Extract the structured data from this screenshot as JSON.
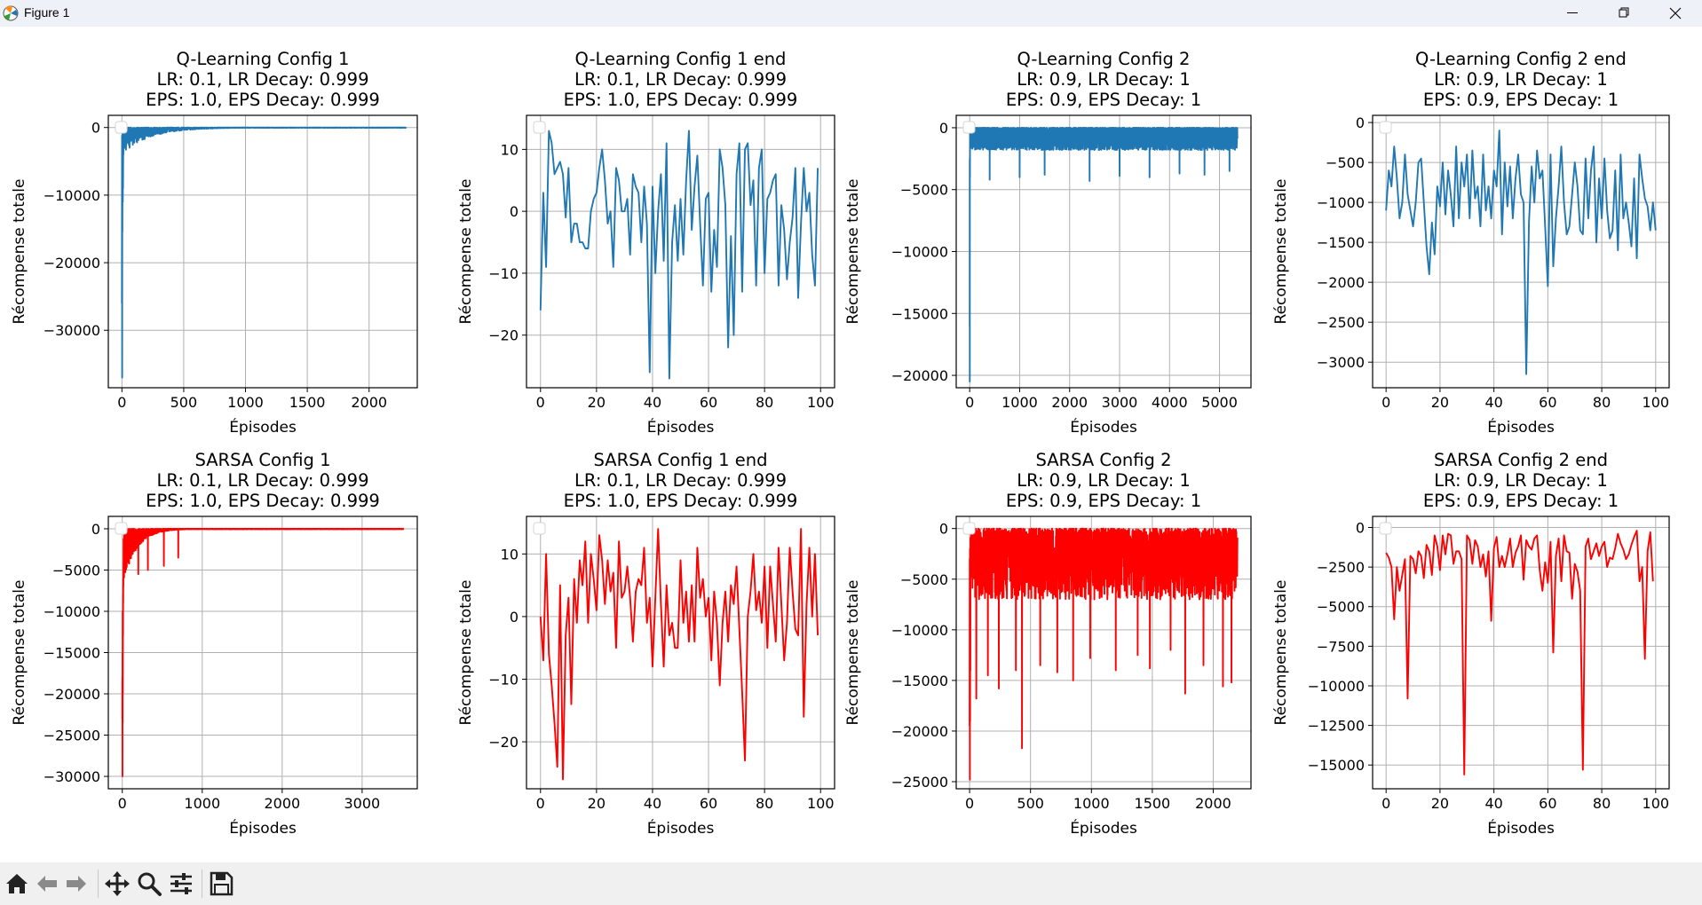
{
  "window": {
    "title": "Figure 1",
    "controls": {
      "minimize": "minimize-icon",
      "restore": "restore-icon",
      "close": "close-icon"
    }
  },
  "toolbar": {
    "buttons": [
      "home-icon",
      "back-arrow-icon",
      "forward-arrow-icon",
      "pan-icon",
      "zoom-icon",
      "configure-subplots-icon",
      "save-icon"
    ]
  },
  "colors": {
    "blue": "#1f77b4",
    "red": "#ff0000",
    "grid": "#b0b0b0"
  },
  "chart_data": [
    {
      "type": "line",
      "color": "#1f77b4",
      "title": [
        "Q-Learning Config 1",
        "LR: 0.1, LR Decay: 0.999",
        "EPS: 1.0, EPS Decay: 0.999"
      ],
      "xlabel": "Épisodes",
      "ylabel": "Récompense totale",
      "xlim": [
        -110,
        2390
      ],
      "ylim": [
        -38500,
        1800
      ],
      "xticks": [
        0,
        500,
        1000,
        1500,
        2000
      ],
      "yticks": [
        0,
        -10000,
        -20000,
        -30000
      ],
      "grid": true,
      "legend": "empty, upper left",
      "series": [
        {
          "n": 2300,
          "init": [
            -26000,
            -1200,
            -37000,
            -2000,
            -15500,
            -400,
            -3500,
            -11000,
            -6000,
            -9000,
            -5000,
            -2500,
            -4000,
            -1500,
            -3000
          ],
          "amp_start": 4000,
          "decay": 220,
          "floor": 50,
          "spikes": []
        }
      ]
    },
    {
      "type": "line",
      "color": "#1f77b4",
      "title": [
        "Q-Learning Config 1 end",
        "LR: 0.1, LR Decay: 0.999",
        "EPS: 1.0, EPS Decay: 0.999"
      ],
      "xlabel": "Épisodes",
      "ylabel": "Récompense totale",
      "xlim": [
        -5,
        105
      ],
      "ylim": [
        -28.5,
        15.5
      ],
      "xticks": [
        0,
        20,
        40,
        60,
        80,
        100
      ],
      "yticks": [
        10,
        0,
        -10,
        -20
      ],
      "grid": true,
      "legend": "empty, upper left",
      "x": [
        0,
        1,
        2,
        3,
        4,
        5,
        6,
        7,
        8,
        9,
        10,
        11,
        12,
        13,
        14,
        15,
        16,
        17,
        18,
        19,
        20,
        21,
        22,
        23,
        24,
        25,
        26,
        27,
        28,
        29,
        30,
        31,
        32,
        33,
        34,
        35,
        36,
        37,
        38,
        39,
        40,
        41,
        42,
        43,
        44,
        45,
        46,
        47,
        48,
        49,
        50,
        51,
        52,
        53,
        54,
        55,
        56,
        57,
        58,
        59,
        60,
        61,
        62,
        63,
        64,
        65,
        66,
        67,
        68,
        69,
        70,
        71,
        72,
        73,
        74,
        75,
        76,
        77,
        78,
        79,
        80,
        81,
        82,
        83,
        84,
        85,
        86,
        87,
        88,
        89,
        90,
        91,
        92,
        93,
        94,
        95,
        96,
        97,
        98,
        99
      ],
      "y": [
        -16,
        3,
        -9,
        13,
        11,
        6,
        7,
        8,
        6,
        -1,
        7,
        -5,
        -2,
        -2,
        -5,
        -5,
        -6,
        -6,
        0,
        2,
        3,
        7,
        10,
        5,
        -2,
        0,
        -9,
        7,
        5,
        0,
        0,
        2,
        -7,
        6,
        4,
        3,
        -5,
        4,
        -2,
        -26,
        4,
        -10,
        0,
        6,
        -8,
        11,
        -27,
        -5,
        1,
        -8,
        2,
        -7,
        5,
        13,
        -3,
        4,
        9,
        -2,
        -12,
        2,
        3,
        -13,
        -3,
        -9,
        10,
        7,
        1,
        -22,
        -4,
        -20,
        6,
        11,
        -13,
        10,
        11,
        1,
        5,
        -12,
        7,
        10,
        -10,
        2,
        3,
        5,
        6,
        -12,
        1,
        -3,
        -11,
        -5,
        -1,
        7,
        -14,
        -2,
        7,
        0,
        3,
        -7,
        -12,
        7
      ]
    },
    {
      "type": "line",
      "color": "#1f77b4",
      "title": [
        "Q-Learning Config 2",
        "LR: 0.9, LR Decay: 1",
        "EPS: 0.9, EPS Decay: 1"
      ],
      "xlabel": "Épisodes",
      "ylabel": "Récompense totale",
      "xlim": [
        -270,
        5630
      ],
      "ylim": [
        -21000,
        1000
      ],
      "xticks": [
        0,
        1000,
        2000,
        3000,
        4000,
        5000
      ],
      "yticks": [
        0,
        -5000,
        -10000,
        -15000,
        -20000
      ],
      "grid": true,
      "legend": "empty, upper left",
      "series": [
        {
          "n": 5360,
          "init": [
            -16000,
            -2500,
            -20500,
            -5000,
            -3000,
            -4000
          ],
          "amp_start": 1800,
          "decay": 1000000000.0,
          "floor": 1800,
          "spikes": [
            [
              400,
              -4200
            ],
            [
              1000,
              -4000
            ],
            [
              1500,
              -3800
            ],
            [
              2400,
              -4300
            ],
            [
              3000,
              -3900
            ],
            [
              3600,
              -4000
            ],
            [
              4200,
              -3700
            ],
            [
              4700,
              -3800
            ],
            [
              5200,
              -3500
            ]
          ]
        }
      ]
    },
    {
      "type": "line",
      "color": "#1f77b4",
      "title": [
        "Q-Learning Config 2 end",
        "LR: 0.9, LR Decay: 1",
        "EPS: 0.9, EPS Decay: 1"
      ],
      "xlabel": "Épisodes",
      "ylabel": "Récompense totale",
      "xlim": [
        -5,
        105
      ],
      "ylim": [
        -3320,
        90
      ],
      "xticks": [
        0,
        20,
        40,
        60,
        80,
        100
      ],
      "yticks": [
        0,
        -500,
        -1000,
        -1500,
        -2000,
        -2500,
        -3000
      ],
      "grid": true,
      "legend": "empty, upper left",
      "x": [
        0,
        1,
        2,
        3,
        4,
        5,
        6,
        7,
        8,
        9,
        10,
        11,
        12,
        13,
        14,
        15,
        16,
        17,
        18,
        19,
        20,
        21,
        22,
        23,
        24,
        25,
        26,
        27,
        28,
        29,
        30,
        31,
        32,
        33,
        34,
        35,
        36,
        37,
        38,
        39,
        40,
        41,
        42,
        43,
        44,
        45,
        46,
        47,
        48,
        49,
        50,
        51,
        52,
        53,
        54,
        55,
        56,
        57,
        58,
        59,
        60,
        61,
        62,
        63,
        64,
        65,
        66,
        67,
        68,
        69,
        70,
        71,
        72,
        73,
        74,
        75,
        76,
        77,
        78,
        79,
        80,
        81,
        82,
        83,
        84,
        85,
        86,
        87,
        88,
        89,
        90,
        91,
        92,
        93,
        94,
        95,
        96,
        97,
        98,
        99,
        100
      ],
      "y": [
        -1100,
        -600,
        -800,
        -300,
        -700,
        -1200,
        -1000,
        -400,
        -900,
        -1100,
        -1300,
        -1000,
        -500,
        -450,
        -1000,
        -1550,
        -1900,
        -1250,
        -1650,
        -800,
        -1050,
        -500,
        -1150,
        -600,
        -900,
        -1300,
        -300,
        -1200,
        -500,
        -800,
        -400,
        -1200,
        -350,
        -950,
        -800,
        -1300,
        -400,
        -1100,
        -800,
        -1200,
        -600,
        -800,
        -100,
        -1400,
        -500,
        -1050,
        -550,
        -1200,
        -700,
        -400,
        -900,
        -1000,
        -3150,
        -1250,
        -550,
        -1000,
        -350,
        -700,
        -600,
        -1300,
        -2050,
        -400,
        -1800,
        -1200,
        -800,
        -300,
        -1000,
        -1400,
        -1300,
        -900,
        -500,
        -800,
        -1350,
        -1400,
        -450,
        -1200,
        -600,
        -300,
        -1500,
        -700,
        -1200,
        -450,
        -1100,
        -1450,
        -1350,
        -600,
        -1600,
        -400,
        -1200,
        -1000,
        -1250,
        -1550,
        -700,
        -1700,
        -400,
        -700,
        -950,
        -1050,
        -1350,
        -1000,
        -1350
      ]
    },
    {
      "type": "line",
      "color": "#ff0000",
      "title": [
        "SARSA Config 1",
        "LR: 0.1, LR Decay: 0.999",
        "EPS: 1.0, EPS Decay: 0.999"
      ],
      "xlabel": "Épisodes",
      "ylabel": "Récompense totale",
      "xlim": [
        -175,
        3690
      ],
      "ylim": [
        -31500,
        1500
      ],
      "xticks": [
        0,
        1000,
        2000,
        3000
      ],
      "yticks": [
        0,
        -5000,
        -10000,
        -15000,
        -20000,
        -25000,
        -30000
      ],
      "grid": true,
      "legend": "empty, upper left",
      "series": [
        {
          "n": 3520,
          "init": [
            -23000,
            -18000,
            -30000,
            -15000,
            -23500,
            -10000,
            -20000,
            -14000,
            -11000,
            -13000,
            -8000,
            -9000,
            -6000,
            -7000,
            -5000,
            -4000
          ],
          "amp_start": 7000,
          "decay": 170,
          "floor": 60,
          "spikes": [
            [
              200,
              -5500
            ],
            [
              320,
              -5000
            ],
            [
              520,
              -4500
            ],
            [
              700,
              -3500
            ]
          ]
        }
      ]
    },
    {
      "type": "line",
      "color": "#ff0000",
      "title": [
        "SARSA Config 1 end",
        "LR: 0.1, LR Decay: 0.999",
        "EPS: 1.0, EPS Decay: 0.999"
      ],
      "xlabel": "Épisodes",
      "ylabel": "Récompense totale",
      "xlim": [
        -5,
        105
      ],
      "ylim": [
        -27.5,
        16
      ],
      "xticks": [
        0,
        20,
        40,
        60,
        80,
        100
      ],
      "yticks": [
        10,
        0,
        -10,
        -20
      ],
      "grid": true,
      "legend": "empty, upper left",
      "x": [
        0,
        1,
        2,
        3,
        4,
        5,
        6,
        7,
        8,
        9,
        10,
        11,
        12,
        13,
        14,
        15,
        16,
        17,
        18,
        19,
        20,
        21,
        22,
        23,
        24,
        25,
        26,
        27,
        28,
        29,
        30,
        31,
        32,
        33,
        34,
        35,
        36,
        37,
        38,
        39,
        40,
        41,
        42,
        43,
        44,
        45,
        46,
        47,
        48,
        49,
        50,
        51,
        52,
        53,
        54,
        55,
        56,
        57,
        58,
        59,
        60,
        61,
        62,
        63,
        64,
        65,
        66,
        67,
        68,
        69,
        70,
        71,
        72,
        73,
        74,
        75,
        76,
        77,
        78,
        79,
        80,
        81,
        82,
        83,
        84,
        85,
        86,
        87,
        88,
        89,
        90,
        91,
        92,
        93,
        94,
        95,
        96,
        97,
        98,
        99
      ],
      "y": [
        0,
        -7,
        10,
        -6,
        -11,
        -17,
        -24,
        5,
        -26,
        -3,
        3,
        -14,
        6,
        -1,
        9,
        5,
        12,
        -1,
        10,
        6,
        1,
        13,
        9,
        2,
        9,
        4,
        7,
        -5,
        12,
        3,
        4,
        8,
        3,
        -4,
        4,
        6,
        5,
        11,
        -1,
        3,
        -8,
        3,
        14,
        2,
        -8,
        5,
        -3,
        -1,
        -5,
        -5,
        9,
        -1,
        4,
        -4,
        5,
        -4,
        11,
        3,
        6,
        0,
        3,
        -7,
        4,
        -1,
        -11,
        -1,
        4,
        -4,
        5,
        2,
        8,
        -2,
        -12,
        -23,
        0,
        4,
        10,
        1,
        4,
        -1,
        8,
        -5,
        8,
        2,
        -4,
        11,
        2,
        -7,
        -1,
        11,
        4,
        -2,
        -3,
        14,
        -16,
        2,
        11,
        0,
        10,
        -3
      ]
    },
    {
      "type": "line",
      "color": "#ff0000",
      "title": [
        "SARSA Config 2",
        "LR: 0.9, LR Decay: 1",
        "EPS: 0.9, EPS Decay: 1"
      ],
      "xlabel": "Épisodes",
      "ylabel": "Récompense totale",
      "xlim": [
        -110,
        2310
      ],
      "ylim": [
        -25700,
        1200
      ],
      "xticks": [
        0,
        500,
        1000,
        1500,
        2000
      ],
      "yticks": [
        0,
        -5000,
        -10000,
        -15000,
        -20000,
        -25000
      ],
      "grid": true,
      "legend": "empty, upper left",
      "series": [
        {
          "n": 2200,
          "init": [
            -19500,
            -3000,
            -24800,
            -2000,
            -19000,
            -6000,
            -14000
          ],
          "amp_start": 7000,
          "decay": 1000000000.0,
          "floor": 7000,
          "spikes": [
            [
              55,
              -16800
            ],
            [
              150,
              -14500
            ],
            [
              240,
              -15800
            ],
            [
              380,
              -14000
            ],
            [
              430,
              -21700
            ],
            [
              580,
              -13500
            ],
            [
              720,
              -14200
            ],
            [
              850,
              -15000
            ],
            [
              990,
              -12800
            ],
            [
              1200,
              -14000
            ],
            [
              1380,
              -12500
            ],
            [
              1480,
              -13800
            ],
            [
              1650,
              -12000
            ],
            [
              1770,
              -16300
            ],
            [
              1920,
              -13500
            ],
            [
              2080,
              -15600
            ],
            [
              2150,
              -15200
            ]
          ]
        }
      ]
    },
    {
      "type": "line",
      "color": "#ff0000",
      "title": [
        "SARSA Config 2 end",
        "LR: 0.9, LR Decay: 1",
        "EPS: 0.9, EPS Decay: 1"
      ],
      "xlabel": "Épisodes",
      "ylabel": "Récompense totale",
      "xlim": [
        -5,
        105
      ],
      "ylim": [
        -16500,
        700
      ],
      "xticks": [
        0,
        20,
        40,
        60,
        80,
        100
      ],
      "yticks": [
        0,
        -2500,
        -5000,
        -7500,
        -10000,
        -12500,
        -15000
      ],
      "grid": true,
      "legend": "empty, upper left",
      "x": [
        0,
        1,
        2,
        3,
        4,
        5,
        6,
        7,
        8,
        9,
        10,
        11,
        12,
        13,
        14,
        15,
        16,
        17,
        18,
        19,
        20,
        21,
        22,
        23,
        24,
        25,
        26,
        27,
        28,
        29,
        30,
        31,
        32,
        33,
        34,
        35,
        36,
        37,
        38,
        39,
        40,
        41,
        42,
        43,
        44,
        45,
        46,
        47,
        48,
        49,
        50,
        51,
        52,
        53,
        54,
        55,
        56,
        57,
        58,
        59,
        60,
        61,
        62,
        63,
        64,
        65,
        66,
        67,
        68,
        69,
        70,
        71,
        72,
        73,
        74,
        75,
        76,
        77,
        78,
        79,
        80,
        81,
        82,
        83,
        84,
        85,
        86,
        87,
        88,
        89,
        90,
        91,
        92,
        93,
        94,
        95,
        96,
        97,
        98,
        99
      ],
      "y": [
        -1600,
        -1900,
        -2500,
        -5800,
        -2500,
        -4000,
        -3000,
        -2000,
        -10800,
        -1800,
        -2000,
        -2900,
        -1500,
        -1800,
        -3200,
        -1100,
        -1500,
        -3000,
        -500,
        -1200,
        -2700,
        -500,
        -1700,
        -400,
        -500,
        -2300,
        -1500,
        -1500,
        -2000,
        -15600,
        -500,
        -800,
        -2300,
        -800,
        -1200,
        -2500,
        -1700,
        -3100,
        -1500,
        -5900,
        -1300,
        -600,
        -2500,
        -1800,
        -2500,
        -1700,
        -700,
        -2500,
        -1600,
        -1200,
        -500,
        -3300,
        -800,
        -1200,
        -1400,
        -700,
        -500,
        -2700,
        -4000,
        -2200,
        -3500,
        -900,
        -7900,
        -1800,
        -700,
        -3400,
        -500,
        -1500,
        -1600,
        -4500,
        -2300,
        -2800,
        -4000,
        -15300,
        -1200,
        -700,
        -2000,
        -1500,
        -1000,
        -1800,
        -1200,
        -900,
        -2500,
        -1900,
        -2000,
        -1300,
        -400,
        -1000,
        -1400,
        -2000,
        -1700,
        -1100,
        -600,
        -200,
        -3400,
        -2500,
        -8300,
        -1500,
        -300,
        -3400
      ]
    }
  ]
}
